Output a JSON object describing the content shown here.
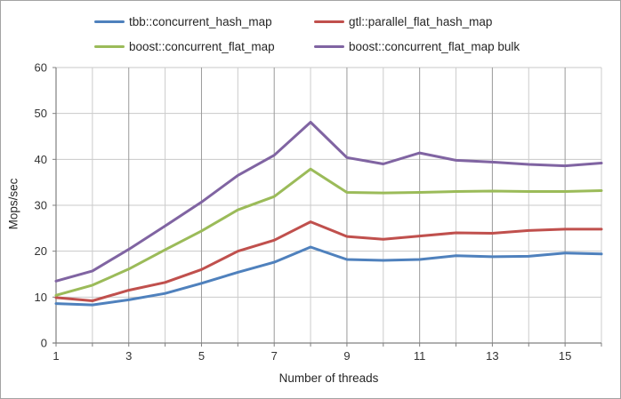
{
  "figure": {
    "background": "#ffffff",
    "border_color": "#a3a3a3"
  },
  "legend": {
    "position": "top",
    "items": [
      {
        "label": "tbb::concurrent_hash_map",
        "color": "#4F81BD"
      },
      {
        "label": "gtl::parallel_flat_hash_map",
        "color": "#C0504D"
      },
      {
        "label": "boost::concurrent_flat_map",
        "color": "#9BBB59"
      },
      {
        "label": "boost::concurrent_flat_map bulk",
        "color": "#8064A2"
      }
    ]
  },
  "chart_data": {
    "type": "line",
    "title": "",
    "xlabel": "Number of threads",
    "ylabel": "Mops/sec",
    "x": [
      1,
      2,
      3,
      4,
      5,
      6,
      7,
      8,
      9,
      10,
      11,
      12,
      13,
      14,
      15,
      16
    ],
    "x_tick_labels": [
      1,
      3,
      5,
      7,
      9,
      11,
      13,
      15
    ],
    "xlim": [
      1,
      16
    ],
    "ylim": [
      0,
      60
    ],
    "y_ticks": [
      0,
      10,
      20,
      30,
      40,
      50,
      60
    ],
    "grid": {
      "horizontal_color": "#c9c9c9",
      "vertical_minor_color": "#cccccc",
      "vertical_major_color": "#9a9a9a",
      "axis_color": "#808080",
      "grid_on": true
    },
    "legend_position": "top",
    "series": [
      {
        "name": "tbb::concurrent_hash_map",
        "color": "#4F81BD",
        "values": [
          8.6,
          8.3,
          9.4,
          10.8,
          13.0,
          15.4,
          17.6,
          20.9,
          18.2,
          18.0,
          18.2,
          19.0,
          18.8,
          18.9,
          19.6,
          19.4
        ]
      },
      {
        "name": "gtl::parallel_flat_hash_map",
        "color": "#C0504D",
        "values": [
          9.9,
          9.2,
          11.5,
          13.2,
          16.0,
          20.0,
          22.4,
          26.4,
          23.2,
          22.6,
          23.3,
          24.0,
          23.9,
          24.5,
          24.8,
          24.8
        ]
      },
      {
        "name": "boost::concurrent_flat_map",
        "color": "#9BBB59",
        "values": [
          10.4,
          12.6,
          16.1,
          20.3,
          24.4,
          29.0,
          31.9,
          37.9,
          32.8,
          32.7,
          32.8,
          33.0,
          33.1,
          33.0,
          33.0,
          33.2
        ]
      },
      {
        "name": "boost::concurrent_flat_map bulk",
        "color": "#8064A2",
        "values": [
          13.5,
          15.7,
          20.4,
          25.5,
          30.7,
          36.5,
          40.9,
          48.1,
          40.4,
          39.0,
          41.4,
          39.8,
          39.4,
          38.9,
          38.6,
          39.2
        ]
      }
    ]
  }
}
